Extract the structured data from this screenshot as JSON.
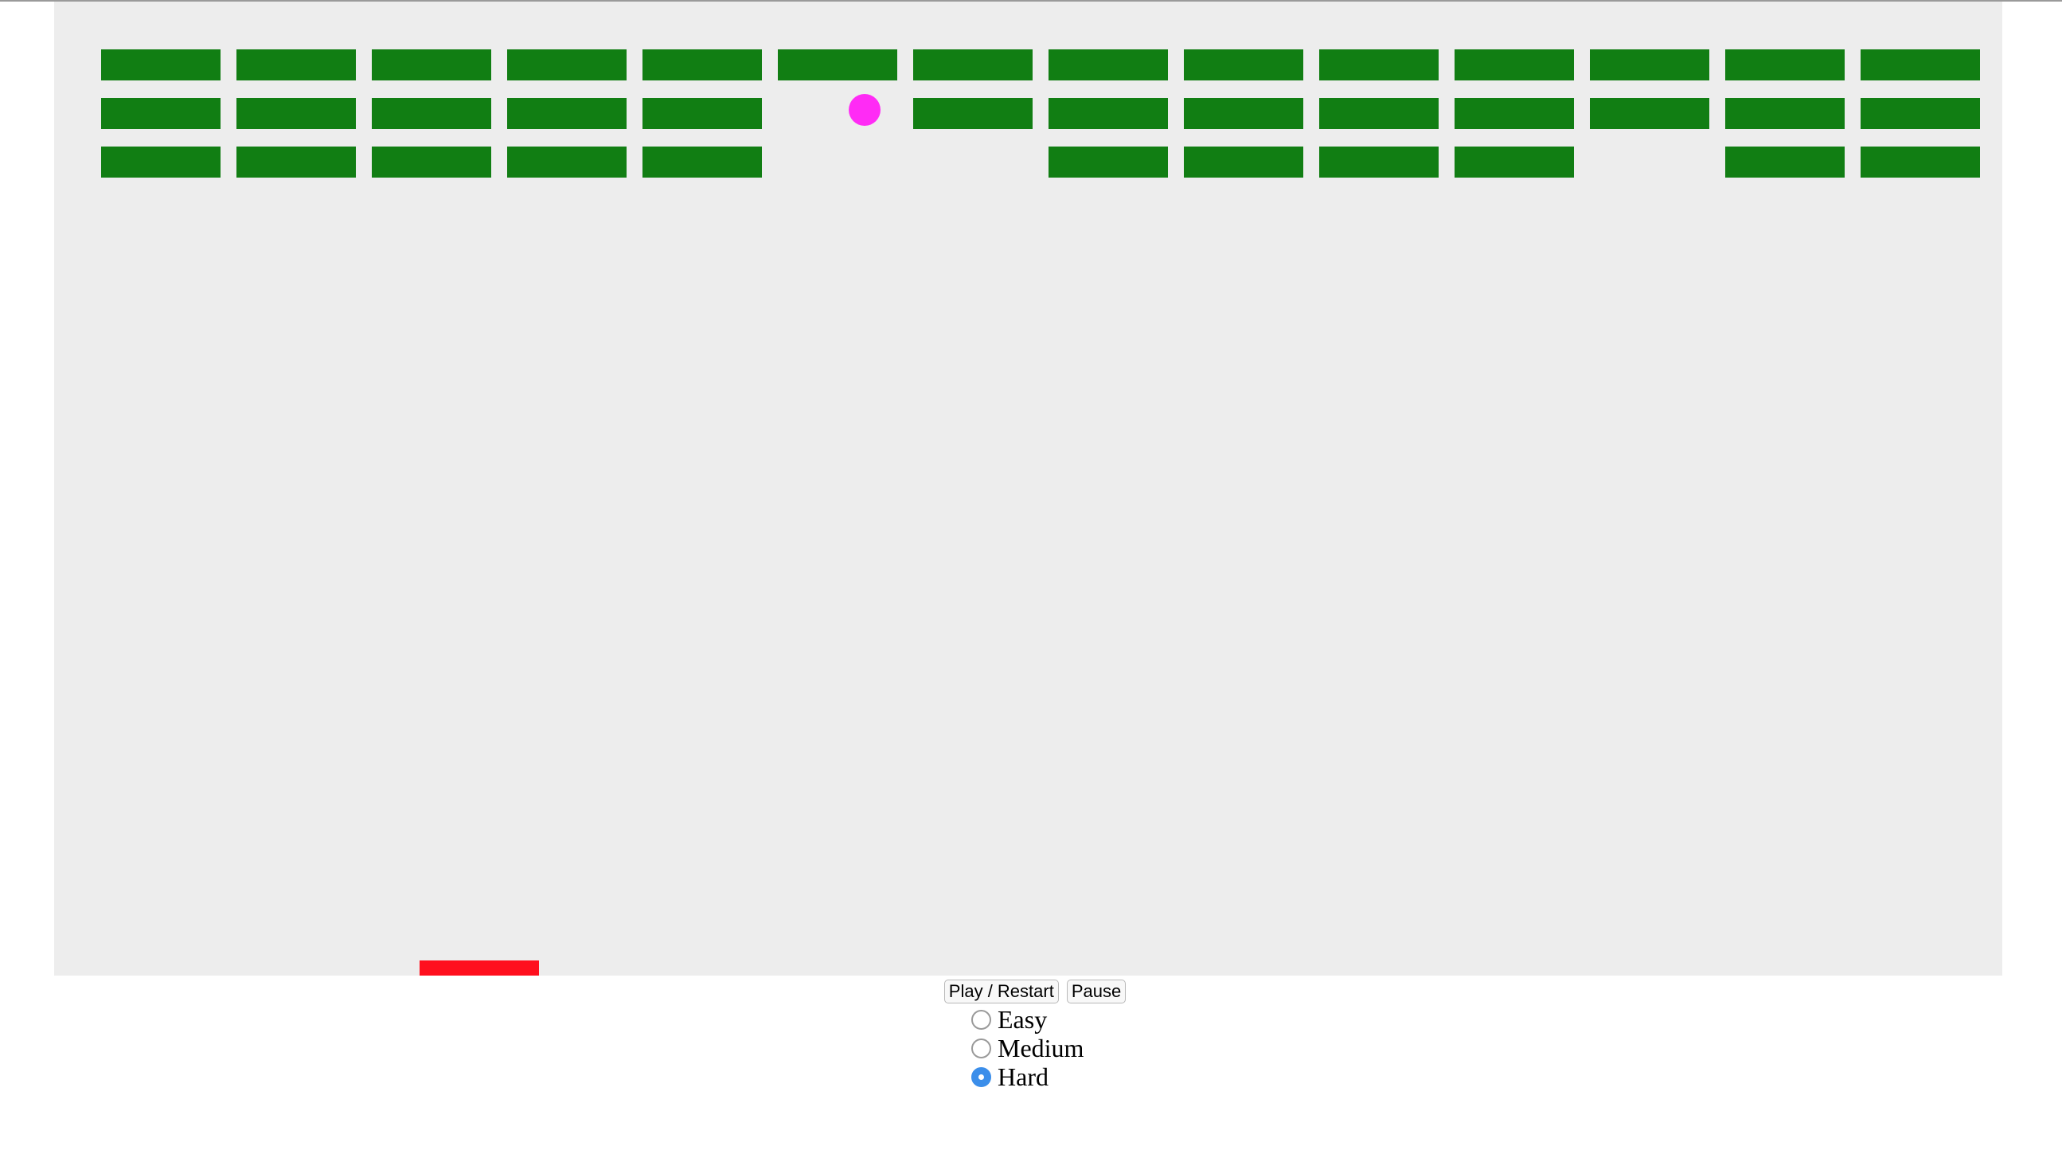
{
  "controls": {
    "play_label": "Play / Restart",
    "pause_label": "Pause"
  },
  "difficulty": {
    "options": [
      "Easy",
      "Medium",
      "Hard"
    ],
    "selected": "Hard"
  },
  "colors": {
    "canvas_bg": "#ededed",
    "brick": "#117e13",
    "ball": "#ff2bf5",
    "paddle": "#ff0f1e",
    "radio_checked": "#3b8eea"
  },
  "bricks": {
    "rows": 3,
    "cols": 14,
    "present": [
      [
        1,
        1,
        1,
        1,
        1,
        1,
        1,
        1,
        1,
        1,
        1,
        1,
        1,
        1
      ],
      [
        1,
        1,
        1,
        1,
        1,
        0,
        1,
        1,
        1,
        1,
        1,
        1,
        1,
        1
      ],
      [
        1,
        1,
        1,
        1,
        1,
        0,
        0,
        1,
        1,
        1,
        1,
        0,
        1,
        1
      ]
    ]
  }
}
